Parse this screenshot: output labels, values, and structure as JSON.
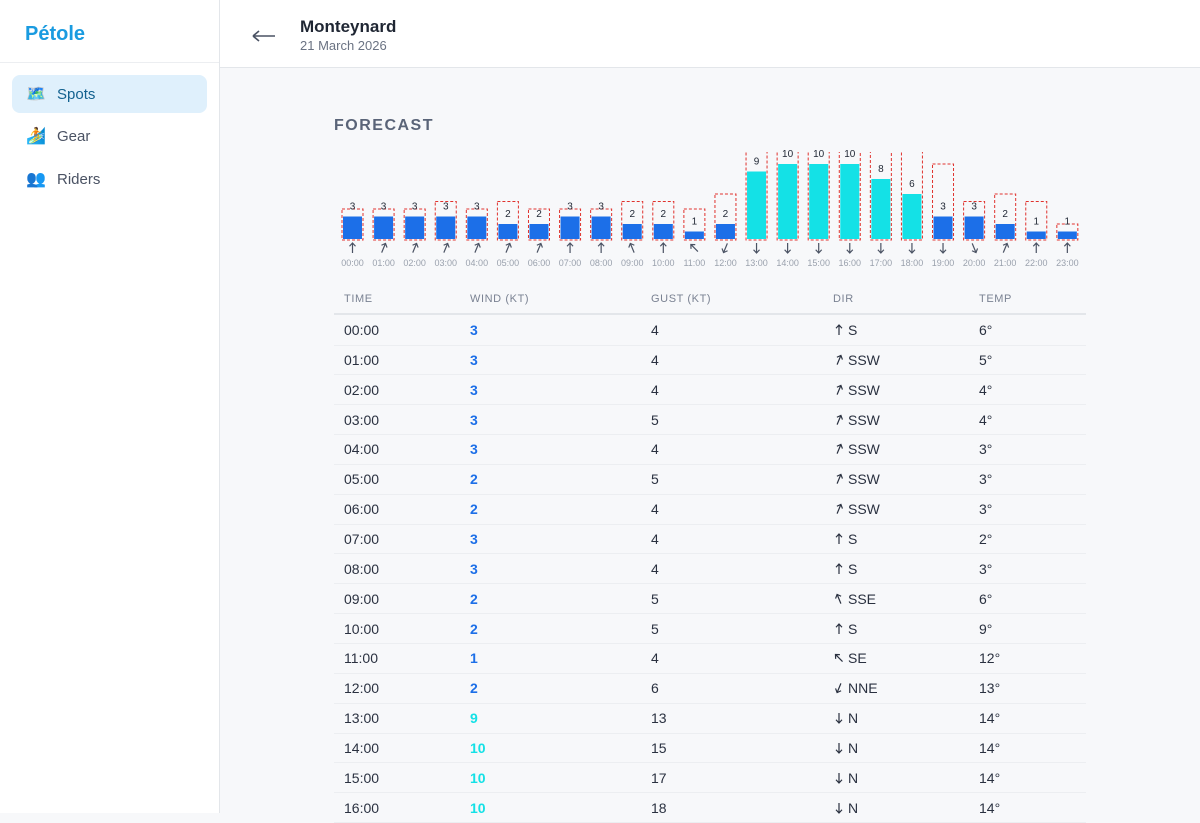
{
  "app": {
    "logo": "Pétole",
    "nav": [
      {
        "label": "Spots"
      },
      {
        "label": "Gear"
      },
      {
        "label": "Riders"
      }
    ]
  },
  "header": {
    "title": "Monteynard",
    "date": "21 March 2026"
  },
  "forecast": {
    "title": "FORECAST",
    "colors": {
      "normal": "#1c6fe8",
      "strong": "#14e1e6",
      "strong_from_kt": 6,
      "gust": "#e0322d"
    },
    "columns": [
      "TIME",
      "WIND (KT)",
      "GUST (KT)",
      "DIR",
      "TEMP"
    ],
    "hours": [
      {
        "time": "00:00",
        "wind": 3,
        "gust": 4,
        "dir": "S",
        "bearing": 180,
        "temp": "6°"
      },
      {
        "time": "01:00",
        "wind": 3,
        "gust": 4,
        "dir": "SSW",
        "bearing": 202.5,
        "temp": "5°"
      },
      {
        "time": "02:00",
        "wind": 3,
        "gust": 4,
        "dir": "SSW",
        "bearing": 202.5,
        "temp": "4°"
      },
      {
        "time": "03:00",
        "wind": 3,
        "gust": 5,
        "dir": "SSW",
        "bearing": 202.5,
        "temp": "4°"
      },
      {
        "time": "04:00",
        "wind": 3,
        "gust": 4,
        "dir": "SSW",
        "bearing": 202.5,
        "temp": "3°"
      },
      {
        "time": "05:00",
        "wind": 2,
        "gust": 5,
        "dir": "SSW",
        "bearing": 202.5,
        "temp": "3°"
      },
      {
        "time": "06:00",
        "wind": 2,
        "gust": 4,
        "dir": "SSW",
        "bearing": 202.5,
        "temp": "3°"
      },
      {
        "time": "07:00",
        "wind": 3,
        "gust": 4,
        "dir": "S",
        "bearing": 180,
        "temp": "2°"
      },
      {
        "time": "08:00",
        "wind": 3,
        "gust": 4,
        "dir": "S",
        "bearing": 180,
        "temp": "3°"
      },
      {
        "time": "09:00",
        "wind": 2,
        "gust": 5,
        "dir": "SSE",
        "bearing": 157.5,
        "temp": "6°"
      },
      {
        "time": "10:00",
        "wind": 2,
        "gust": 5,
        "dir": "S",
        "bearing": 180,
        "temp": "9°"
      },
      {
        "time": "11:00",
        "wind": 1,
        "gust": 4,
        "dir": "SE",
        "bearing": 135,
        "temp": "12°"
      },
      {
        "time": "12:00",
        "wind": 2,
        "gust": 6,
        "dir": "NNE",
        "bearing": 22.5,
        "temp": "13°"
      },
      {
        "time": "13:00",
        "wind": 9,
        "gust": 13,
        "dir": "N",
        "bearing": 0,
        "temp": "14°"
      },
      {
        "time": "14:00",
        "wind": 10,
        "gust": 15,
        "dir": "N",
        "bearing": 0,
        "temp": "14°"
      },
      {
        "time": "15:00",
        "wind": 10,
        "gust": 17,
        "dir": "N",
        "bearing": 0,
        "temp": "14°"
      },
      {
        "time": "16:00",
        "wind": 10,
        "gust": 18,
        "dir": "N",
        "bearing": 0,
        "temp": "14°"
      },
      {
        "time": "17:00",
        "wind": 8,
        "gust": 16,
        "bearing": 0
      },
      {
        "time": "18:00",
        "wind": 6,
        "gust": 13,
        "bearing": 0
      },
      {
        "time": "19:00",
        "wind": 3,
        "gust": 10,
        "bearing": 0
      },
      {
        "time": "20:00",
        "wind": 3,
        "gust": 5,
        "bearing": 337.5
      },
      {
        "time": "21:00",
        "wind": 2,
        "gust": 6,
        "bearing": 202.5
      },
      {
        "time": "22:00",
        "wind": 1,
        "gust": 5,
        "bearing": 180
      },
      {
        "time": "23:00",
        "wind": 1,
        "gust": 2,
        "bearing": 180
      }
    ]
  }
}
